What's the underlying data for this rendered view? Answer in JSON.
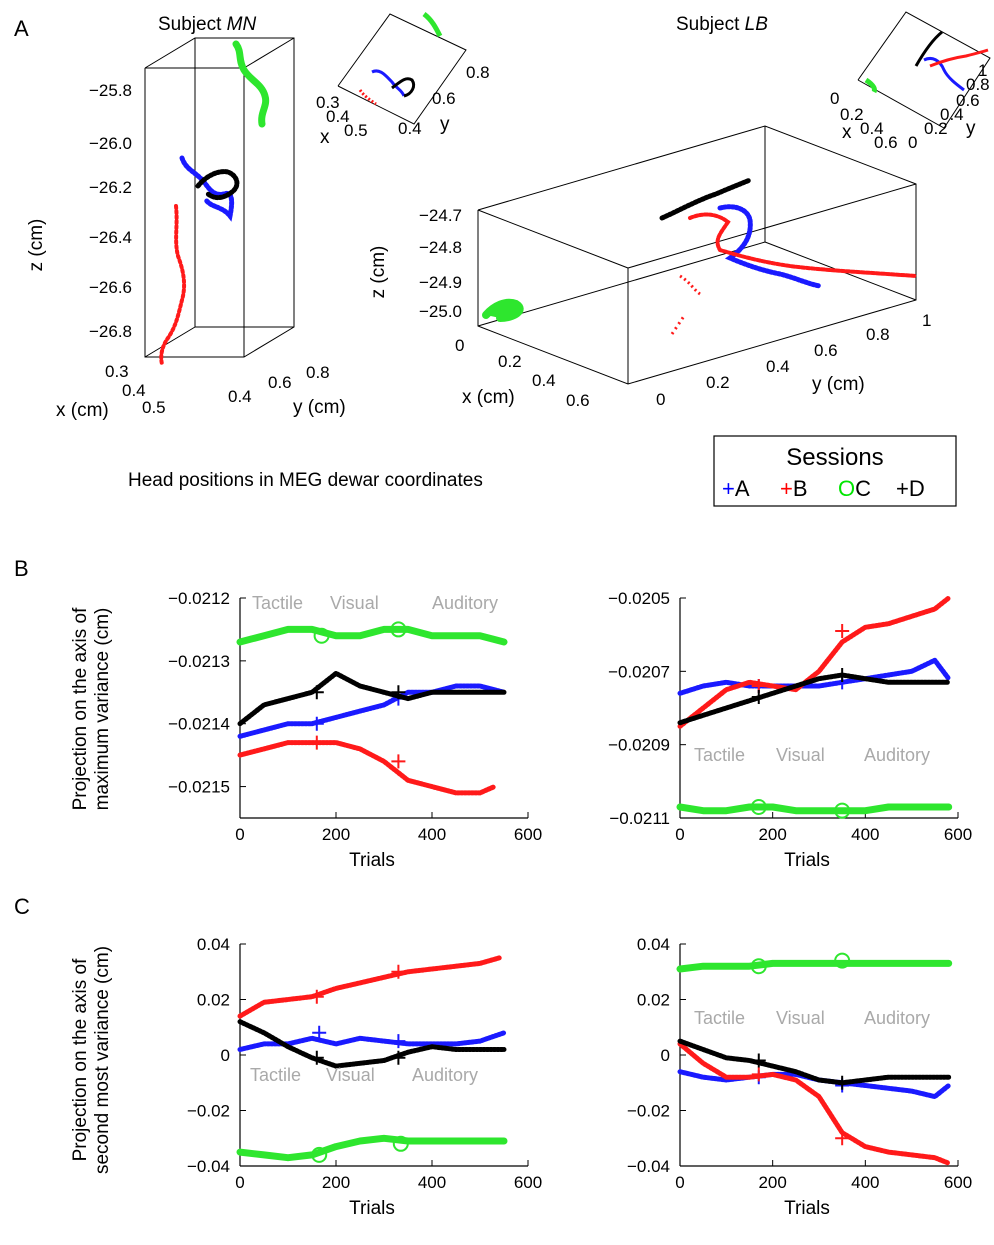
{
  "panels": {
    "a": "A",
    "b": "B",
    "c": "C"
  },
  "panel_a": {
    "caption": "Head positions in MEG dewar coordinates",
    "mn": {
      "title_prefix": "Subject ",
      "title_name": "MN",
      "zlabel": "z (cm)",
      "xlabel": "x (cm)",
      "ylabel": "y (cm)",
      "zticks": [
        "−25.8",
        "−26.0",
        "−26.2",
        "−26.4",
        "−26.6",
        "−26.8"
      ],
      "xticks": [
        "0.3",
        "0.4",
        "0.5"
      ],
      "yticks": [
        "0.4",
        "0.6",
        "0.8"
      ],
      "inset": {
        "xlabel": "x",
        "ylabel": "y",
        "xticks": [
          "0.3",
          "0.4",
          "0.5"
        ],
        "yticks": [
          "0.4",
          "0.6",
          "0.8"
        ]
      }
    },
    "lb": {
      "title_prefix": "Subject ",
      "title_name": "LB",
      "zlabel": "z (cm)",
      "xlabel": "x (cm)",
      "ylabel": "y (cm)",
      "zticks": [
        "−24.7",
        "−24.8",
        "−24.9",
        "−25.0"
      ],
      "xticks": [
        "0",
        "0.2",
        "0.4",
        "0.6"
      ],
      "yticks": [
        "0",
        "0.2",
        "0.4",
        "0.6",
        "0.8",
        "1"
      ],
      "inset": {
        "xlabel": "x",
        "ylabel": "y",
        "xticks": [
          "0",
          "0.2",
          "0.4",
          "0.6"
        ],
        "yticks": [
          "0",
          "0.2",
          "0.4",
          "0.6",
          "0.8",
          "1"
        ]
      }
    }
  },
  "legend": {
    "title": "Sessions",
    "items": [
      {
        "symbol": "+",
        "label": "A",
        "color": "#0000ff"
      },
      {
        "symbol": "+",
        "label": "B",
        "color": "#ff0000"
      },
      {
        "symbol": "O",
        "label": "C",
        "color": "#00e600"
      },
      {
        "symbol": "+",
        "label": "D",
        "color": "#000000"
      }
    ]
  },
  "colors": {
    "A": "#1a1aff",
    "B": "#ff1a1a",
    "C": "#2ee62e",
    "D": "#000000",
    "condition_text": "#a9a9a9"
  },
  "conditions": [
    "Tactile",
    "Visual",
    "Auditory"
  ],
  "ylabel_b": "Projection on the axis of maximum variance (cm)",
  "ylabel_c": "Projection on the axis of second most variance (cm)",
  "chart_data": [
    {
      "id": "b-left",
      "type": "scatter",
      "subject": "MN",
      "xlabel": "Trials",
      "xlim": [
        0,
        600
      ],
      "xticks": [
        0,
        200,
        400,
        600
      ],
      "ylim": [
        -0.02155,
        -0.0212
      ],
      "yticks": [
        -0.0212,
        -0.0213,
        -0.0214,
        -0.0215
      ],
      "ytick_labels": [
        "−0.0212",
        "−0.0213",
        "−0.0214",
        "−0.0215"
      ],
      "series": [
        {
          "name": "A",
          "x": [
            0,
            50,
            100,
            150,
            200,
            250,
            300,
            350,
            400,
            450,
            500,
            550
          ],
          "y": [
            -0.02142,
            -0.02141,
            -0.0214,
            -0.0214,
            -0.02139,
            -0.02138,
            -0.02137,
            -0.02135,
            -0.02135,
            -0.02134,
            -0.02134,
            -0.02135
          ],
          "markers": [
            {
              "x": 160,
              "y": -0.0214
            },
            {
              "x": 330,
              "y": -0.02136
            }
          ]
        },
        {
          "name": "B",
          "x": [
            0,
            50,
            100,
            150,
            200,
            250,
            300,
            350,
            400,
            450,
            500,
            530
          ],
          "y": [
            -0.02145,
            -0.02144,
            -0.02143,
            -0.02143,
            -0.02143,
            -0.02144,
            -0.02146,
            -0.02149,
            -0.0215,
            -0.02151,
            -0.02151,
            -0.0215
          ],
          "markers": [
            {
              "x": 160,
              "y": -0.02143
            },
            {
              "x": 330,
              "y": -0.02146
            }
          ]
        },
        {
          "name": "C",
          "x": [
            0,
            50,
            100,
            150,
            200,
            250,
            300,
            350,
            400,
            450,
            500,
            550
          ],
          "y": [
            -0.02127,
            -0.02126,
            -0.02125,
            -0.02125,
            -0.02126,
            -0.02126,
            -0.02125,
            -0.02125,
            -0.02126,
            -0.02126,
            -0.02126,
            -0.02127
          ],
          "markers": [
            {
              "x": 170,
              "y": -0.02126
            },
            {
              "x": 330,
              "y": -0.02125
            }
          ]
        },
        {
          "name": "D",
          "x": [
            0,
            50,
            100,
            150,
            200,
            250,
            300,
            350,
            400,
            450,
            500,
            550
          ],
          "y": [
            -0.0214,
            -0.02137,
            -0.02136,
            -0.02135,
            -0.02132,
            -0.02134,
            -0.02135,
            -0.02136,
            -0.02135,
            -0.02135,
            -0.02135,
            -0.02135
          ],
          "markers": [
            {
              "x": 160,
              "y": -0.02135
            },
            {
              "x": 330,
              "y": -0.02135
            }
          ]
        }
      ]
    },
    {
      "id": "b-right",
      "type": "scatter",
      "subject": "LB",
      "xlabel": "Trials",
      "xlim": [
        0,
        600
      ],
      "xticks": [
        0,
        200,
        400,
        600
      ],
      "ylim": [
        -0.0211,
        -0.0205
      ],
      "yticks": [
        -0.0205,
        -0.0207,
        -0.0209,
        -0.0211
      ],
      "ytick_labels": [
        "−0.0205",
        "−0.0207",
        "−0.0209",
        "−0.0211"
      ],
      "series": [
        {
          "name": "A",
          "x": [
            0,
            50,
            100,
            150,
            200,
            250,
            300,
            350,
            400,
            450,
            500,
            550,
            580
          ],
          "y": [
            -0.02076,
            -0.02074,
            -0.02073,
            -0.02074,
            -0.02074,
            -0.02074,
            -0.02074,
            -0.02073,
            -0.02072,
            -0.02071,
            -0.0207,
            -0.02067,
            -0.02072
          ],
          "markers": [
            {
              "x": 170,
              "y": -0.02074
            },
            {
              "x": 350,
              "y": -0.02073
            }
          ]
        },
        {
          "name": "B",
          "x": [
            0,
            50,
            100,
            150,
            200,
            250,
            300,
            350,
            400,
            450,
            500,
            550,
            580
          ],
          "y": [
            -0.02085,
            -0.0208,
            -0.02075,
            -0.02073,
            -0.02074,
            -0.02075,
            -0.0207,
            -0.02062,
            -0.02058,
            -0.02057,
            -0.02055,
            -0.02053,
            -0.0205
          ],
          "markers": [
            {
              "x": 170,
              "y": -0.02074
            },
            {
              "x": 350,
              "y": -0.02059
            }
          ]
        },
        {
          "name": "C",
          "x": [
            0,
            50,
            100,
            150,
            200,
            250,
            300,
            350,
            400,
            450,
            500,
            550,
            580
          ],
          "y": [
            -0.02107,
            -0.02108,
            -0.02108,
            -0.02107,
            -0.02107,
            -0.02108,
            -0.02108,
            -0.02108,
            -0.02108,
            -0.02107,
            -0.02107,
            -0.02107,
            -0.02107
          ],
          "markers": [
            {
              "x": 170,
              "y": -0.02107
            },
            {
              "x": 350,
              "y": -0.02108
            }
          ]
        },
        {
          "name": "D",
          "x": [
            0,
            50,
            100,
            150,
            200,
            250,
            300,
            350,
            400,
            450,
            500,
            550,
            580
          ],
          "y": [
            -0.02084,
            -0.02082,
            -0.0208,
            -0.02078,
            -0.02076,
            -0.02074,
            -0.02072,
            -0.02071,
            -0.02072,
            -0.02073,
            -0.02073,
            -0.02073,
            -0.02073
          ],
          "markers": [
            {
              "x": 170,
              "y": -0.02077
            },
            {
              "x": 350,
              "y": -0.02071
            }
          ]
        }
      ]
    },
    {
      "id": "c-left",
      "type": "scatter",
      "subject": "MN",
      "xlabel": "Trials",
      "xlim": [
        0,
        600
      ],
      "xticks": [
        0,
        200,
        400,
        600
      ],
      "ylim": [
        -0.04,
        0.04
      ],
      "yticks": [
        0.04,
        0.02,
        0,
        -0.02,
        -0.04
      ],
      "ytick_labels": [
        "0.04",
        "0.02",
        "0",
        "−0.02",
        "−0.04"
      ],
      "series": [
        {
          "name": "A",
          "x": [
            0,
            50,
            100,
            150,
            200,
            250,
            300,
            350,
            400,
            450,
            500,
            550
          ],
          "y": [
            0.002,
            0.004,
            0.004,
            0.006,
            0.004,
            0.006,
            0.005,
            0.004,
            0.004,
            0.004,
            0.005,
            0.008
          ],
          "markers": [
            {
              "x": 165,
              "y": 0.008
            },
            {
              "x": 330,
              "y": 0.005
            }
          ]
        },
        {
          "name": "B",
          "x": [
            0,
            50,
            100,
            150,
            200,
            250,
            300,
            350,
            400,
            450,
            500,
            540
          ],
          "y": [
            0.014,
            0.019,
            0.02,
            0.021,
            0.024,
            0.026,
            0.028,
            0.03,
            0.031,
            0.032,
            0.033,
            0.035
          ],
          "markers": [
            {
              "x": 160,
              "y": 0.021
            },
            {
              "x": 330,
              "y": 0.03
            }
          ]
        },
        {
          "name": "C",
          "x": [
            0,
            50,
            100,
            150,
            200,
            250,
            300,
            350,
            400,
            450,
            500,
            550
          ],
          "y": [
            -0.035,
            -0.036,
            -0.037,
            -0.036,
            -0.033,
            -0.031,
            -0.03,
            -0.031,
            -0.031,
            -0.031,
            -0.031,
            -0.031
          ],
          "markers": [
            {
              "x": 165,
              "y": -0.036
            },
            {
              "x": 335,
              "y": -0.032
            }
          ]
        },
        {
          "name": "D",
          "x": [
            0,
            50,
            100,
            150,
            200,
            250,
            300,
            350,
            400,
            450,
            500,
            550
          ],
          "y": [
            0.012,
            0.008,
            0.003,
            -0.001,
            -0.004,
            -0.003,
            -0.002,
            0.001,
            0.003,
            0.002,
            0.002,
            0.002
          ],
          "markers": [
            {
              "x": 160,
              "y": -0.001
            },
            {
              "x": 330,
              "y": -0.001
            }
          ]
        }
      ]
    },
    {
      "id": "c-right",
      "type": "scatter",
      "subject": "LB",
      "xlabel": "Trials",
      "xlim": [
        0,
        600
      ],
      "xticks": [
        0,
        200,
        400,
        600
      ],
      "ylim": [
        -0.04,
        0.04
      ],
      "yticks": [
        0.04,
        0.02,
        0,
        -0.02,
        -0.04
      ],
      "ytick_labels": [
        "0.04",
        "0.02",
        "0",
        "−0.02",
        "−0.04"
      ],
      "series": [
        {
          "name": "A",
          "x": [
            0,
            50,
            100,
            150,
            200,
            250,
            300,
            350,
            400,
            450,
            500,
            550,
            580
          ],
          "y": [
            -0.006,
            -0.008,
            -0.009,
            -0.008,
            -0.007,
            -0.007,
            -0.009,
            -0.01,
            -0.011,
            -0.012,
            -0.013,
            -0.015,
            -0.011
          ],
          "markers": [
            {
              "x": 170,
              "y": -0.008
            },
            {
              "x": 350,
              "y": -0.011
            }
          ]
        },
        {
          "name": "B",
          "x": [
            0,
            50,
            100,
            150,
            200,
            250,
            300,
            350,
            400,
            450,
            500,
            550,
            580
          ],
          "y": [
            0.004,
            -0.003,
            -0.008,
            -0.008,
            -0.007,
            -0.009,
            -0.015,
            -0.028,
            -0.033,
            -0.035,
            -0.036,
            -0.037,
            -0.039
          ],
          "markers": [
            {
              "x": 170,
              "y": -0.007
            },
            {
              "x": 350,
              "y": -0.03
            }
          ]
        },
        {
          "name": "C",
          "x": [
            0,
            50,
            100,
            150,
            200,
            250,
            300,
            350,
            400,
            450,
            500,
            550,
            580
          ],
          "y": [
            0.031,
            0.032,
            0.032,
            0.032,
            0.033,
            0.033,
            0.033,
            0.033,
            0.033,
            0.033,
            0.033,
            0.033,
            0.033
          ],
          "markers": [
            {
              "x": 170,
              "y": 0.032
            },
            {
              "x": 350,
              "y": 0.034
            }
          ]
        },
        {
          "name": "D",
          "x": [
            0,
            50,
            100,
            150,
            200,
            250,
            300,
            350,
            400,
            450,
            500,
            550,
            580
          ],
          "y": [
            0.005,
            0.002,
            -0.001,
            -0.002,
            -0.004,
            -0.006,
            -0.009,
            -0.01,
            -0.009,
            -0.008,
            -0.008,
            -0.008,
            -0.008
          ],
          "markers": [
            {
              "x": 170,
              "y": -0.002
            },
            {
              "x": 350,
              "y": -0.01
            }
          ]
        }
      ]
    }
  ]
}
